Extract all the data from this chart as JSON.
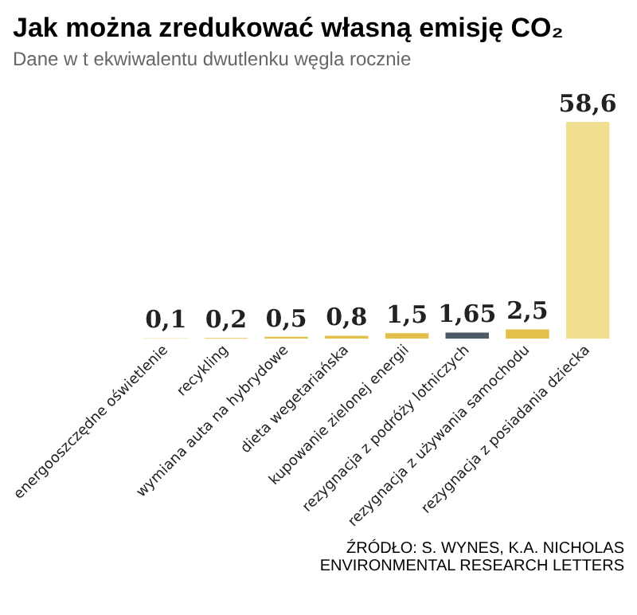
{
  "chart_data": {
    "type": "bar",
    "title": "Jak można zredukować własną emisję CO₂",
    "subtitle": "Dane w t ekwiwalentu dwutlenku węgla rocznie",
    "categories": [
      "energooszczędne oświetlenie",
      "recykling",
      "wymiana auta na hybrydowe",
      "dieta wegetariańska",
      "kupowanie zielonej energii",
      "rezygnacja z podróży lotniczych",
      "rezygnacja z używania samochodu",
      "rezygnacja z posiadania dziecka"
    ],
    "values": [
      0.1,
      0.2,
      0.5,
      0.8,
      1.5,
      1.65,
      2.5,
      58.6
    ],
    "value_labels": [
      "0,1",
      "0,2",
      "0,5",
      "0,8",
      "1,5",
      "1,65",
      "2,5",
      "58,6"
    ],
    "colors": [
      "#e3c04a",
      "#e3c04a",
      "#e3c04a",
      "#e3c04a",
      "#e3c04a",
      "#4b5a66",
      "#e3c04a",
      "#f0df90"
    ],
    "relative": false,
    "grid": false,
    "legend": false,
    "annotations": [
      "ŹRÓDŁO: S. WYNES, K.A. NICHOLAS\nENVIRONMENTAL RESEARCH LETTERS"
    ]
  }
}
